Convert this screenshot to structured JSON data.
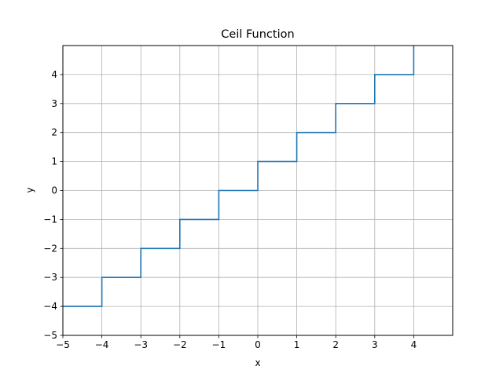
{
  "chart_data": {
    "type": "line",
    "title": "Ceil Function",
    "xlabel": "x",
    "ylabel": "y",
    "xlim": [
      -5,
      5
    ],
    "ylim": [
      -5,
      5
    ],
    "grid": true,
    "x_ticks": [
      "−5",
      "−4",
      "−3",
      "−2",
      "−1",
      "0",
      "1",
      "2",
      "3",
      "4"
    ],
    "y_ticks": [
      "−5",
      "−4",
      "−3",
      "−2",
      "−1",
      "0",
      "1",
      "2",
      "3",
      "4"
    ],
    "series": [
      {
        "color": "#1f77b4",
        "x": [
          -5,
          -4,
          -4,
          -3,
          -3,
          -2,
          -2,
          -1,
          -1,
          0,
          0,
          1,
          1,
          2,
          2,
          3,
          3,
          4,
          4
        ],
        "y": [
          -4,
          -4,
          -3,
          -3,
          -2,
          -2,
          -1,
          -1,
          0,
          0,
          1,
          1,
          2,
          2,
          3,
          3,
          4,
          4,
          5
        ]
      }
    ]
  }
}
